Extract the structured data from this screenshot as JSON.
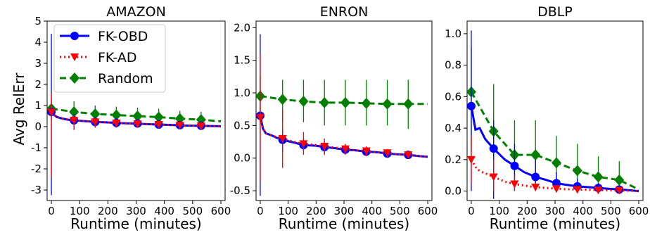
{
  "figure": {
    "ylabel": "Avg RelErr"
  },
  "legend": {
    "placement": "top-left of first panel",
    "entries": [
      {
        "name": "FK-OBD",
        "color": "#0000ff",
        "style": "solid",
        "marker": "circle"
      },
      {
        "name": "FK-AD",
        "color": "#ff0000",
        "style": "dotted",
        "marker": "triangle-down"
      },
      {
        "name": "Random",
        "color": "#008000",
        "style": "dashed",
        "marker": "diamond"
      }
    ]
  },
  "chart_data": [
    {
      "type": "line",
      "title": "AMAZON",
      "xlabel": "Runtime (minutes)",
      "ylabel": "Avg RelErr",
      "xlim": [
        -15,
        615
      ],
      "ylim": [
        -3.5,
        5.0
      ],
      "xticks": [
        0,
        100,
        200,
        300,
        400,
        500,
        600
      ],
      "yticks": [
        -3,
        -2,
        -1,
        0,
        1,
        2,
        3,
        4,
        5
      ],
      "series": [
        {
          "name": "FK-OBD",
          "color": "#0000ff",
          "line": {
            "x": [
              0,
              10,
              20,
              40,
              60,
              80,
              120,
              160,
              200,
              240,
              280,
              320,
              360,
              400,
              440,
              480,
              520,
              560,
              600
            ],
            "y": [
              0.7,
              0.55,
              0.45,
              0.38,
              0.33,
              0.3,
              0.26,
              0.22,
              0.2,
              0.17,
              0.15,
              0.13,
              0.11,
              0.09,
              0.07,
              0.05,
              0.04,
              0.03,
              0.02
            ]
          },
          "markers": {
            "x": [
              0,
              80,
              155,
              230,
              305,
              380,
              455,
              530
            ],
            "y": [
              0.7,
              0.3,
              0.22,
              0.18,
              0.15,
              0.1,
              0.07,
              0.04
            ]
          },
          "error_low": [
            -3.25,
            -0.15,
            -0.05,
            -0.05,
            -0.05,
            -0.1,
            -0.1,
            -0.15
          ],
          "error_high": [
            4.4,
            0.6,
            0.45,
            0.4,
            0.35,
            0.3,
            0.25,
            0.2
          ]
        },
        {
          "name": "FK-AD",
          "color": "#ff0000",
          "line": {
            "x": [
              0,
              10,
              20,
              40,
              60,
              80,
              120,
              160,
              200,
              240,
              280,
              320,
              360,
              400,
              440,
              480,
              520,
              560,
              600
            ],
            "y": [
              0.68,
              0.55,
              0.45,
              0.38,
              0.33,
              0.3,
              0.26,
              0.22,
              0.2,
              0.17,
              0.15,
              0.13,
              0.11,
              0.09,
              0.07,
              0.05,
              0.04,
              0.03,
              0.02
            ]
          },
          "markers": {
            "x": [
              0,
              80,
              155,
              230,
              305,
              380,
              455,
              530
            ],
            "y": [
              0.68,
              0.3,
              0.22,
              0.17,
              0.13,
              0.1,
              0.07,
              0.03
            ]
          },
          "error_low": [
            -2.4,
            -0.1,
            -0.05,
            -0.05,
            -0.05,
            -0.05,
            -0.05,
            -0.1
          ],
          "error_high": [
            1.6,
            0.55,
            0.4,
            0.35,
            0.3,
            0.25,
            0.2,
            0.15
          ]
        },
        {
          "name": "Random",
          "color": "#008000",
          "line": {
            "x": [
              0,
              80,
              155,
              230,
              305,
              380,
              455,
              530,
              600
            ],
            "y": [
              0.85,
              0.7,
              0.6,
              0.55,
              0.5,
              0.45,
              0.38,
              0.33,
              0.25
            ]
          },
          "markers": {
            "x": [
              0,
              80,
              155,
              230,
              305,
              380,
              455,
              530
            ],
            "y": [
              0.85,
              0.7,
              0.6,
              0.55,
              0.5,
              0.45,
              0.38,
              0.33
            ]
          },
          "error_low": [
            0.3,
            0.2,
            0.15,
            0.1,
            0.1,
            0.05,
            0.0,
            -0.05
          ],
          "error_high": [
            1.3,
            1.2,
            1.0,
            0.95,
            0.9,
            0.85,
            0.75,
            0.7
          ]
        }
      ]
    },
    {
      "type": "line",
      "title": "ENRON",
      "xlabel": "Runtime (minutes)",
      "ylabel": "",
      "xlim": [
        -15,
        615
      ],
      "ylim": [
        -0.65,
        2.1
      ],
      "xticks": [
        0,
        100,
        200,
        300,
        400,
        500,
        600
      ],
      "yticks": [
        -0.5,
        0.0,
        0.5,
        1.0,
        1.5,
        2.0
      ],
      "series": [
        {
          "name": "FK-OBD",
          "color": "#0000ff",
          "line": {
            "x": [
              0,
              10,
              20,
              40,
              60,
              80,
              120,
              155,
              200,
              230,
              270,
              305,
              340,
              380,
              420,
              455,
              490,
              530,
              570,
              600
            ],
            "y": [
              0.65,
              0.45,
              0.38,
              0.35,
              0.31,
              0.28,
              0.24,
              0.2,
              0.19,
              0.17,
              0.15,
              0.13,
              0.12,
              0.1,
              0.09,
              0.07,
              0.06,
              0.05,
              0.03,
              0.02
            ]
          },
          "markers": {
            "x": [
              0,
              80,
              155,
              230,
              305,
              380,
              455,
              530
            ],
            "y": [
              0.65,
              0.28,
              0.2,
              0.17,
              0.13,
              0.1,
              0.07,
              0.05
            ]
          },
          "error_low": [
            -0.58,
            0.1,
            0.1,
            0.08,
            0.06,
            0.05,
            0.03,
            0.02
          ],
          "error_high": [
            1.9,
            0.45,
            0.3,
            0.27,
            0.2,
            0.15,
            0.12,
            0.08
          ]
        },
        {
          "name": "FK-AD",
          "color": "#ff0000",
          "line": {
            "x": [
              0,
              10,
              20,
              40,
              60,
              80,
              120,
              155,
              200,
              230,
              270,
              305,
              340,
              380,
              420,
              455,
              490,
              530,
              570,
              600
            ],
            "y": [
              0.62,
              0.45,
              0.38,
              0.35,
              0.32,
              0.3,
              0.25,
              0.22,
              0.2,
              0.18,
              0.16,
              0.14,
              0.12,
              0.11,
              0.09,
              0.08,
              0.06,
              0.05,
              0.03,
              0.02
            ]
          },
          "markers": {
            "x": [
              0,
              80,
              155,
              230,
              305,
              380,
              455,
              530
            ],
            "y": [
              0.62,
              0.3,
              0.22,
              0.18,
              0.14,
              0.11,
              0.08,
              0.05
            ]
          },
          "error_low": [
            -0.35,
            -0.15,
            0.05,
            0.05,
            0.05,
            0.03,
            0.02,
            0.02
          ],
          "error_high": [
            1.6,
            0.75,
            0.4,
            0.3,
            0.22,
            0.18,
            0.14,
            0.1
          ]
        },
        {
          "name": "Random",
          "color": "#008000",
          "line": {
            "x": [
              0,
              80,
              155,
              230,
              305,
              380,
              455,
              530,
              600
            ],
            "y": [
              0.95,
              0.9,
              0.87,
              0.85,
              0.85,
              0.84,
              0.83,
              0.83,
              0.83
            ]
          },
          "markers": {
            "x": [
              0,
              80,
              155,
              230,
              305,
              380,
              455,
              530
            ],
            "y": [
              0.95,
              0.9,
              0.87,
              0.85,
              0.85,
              0.84,
              0.83,
              0.83
            ]
          },
          "error_low": [
            0.5,
            0.55,
            0.55,
            0.5,
            0.5,
            0.5,
            0.5,
            0.45
          ],
          "error_high": [
            1.25,
            1.2,
            1.2,
            1.2,
            1.2,
            1.2,
            1.2,
            1.2
          ]
        }
      ]
    },
    {
      "type": "line",
      "title": "DBLP",
      "xlabel": "Runtime (minutes)",
      "ylabel": "",
      "xlim": [
        -15,
        615
      ],
      "ylim": [
        -0.06,
        1.08
      ],
      "xticks": [
        0,
        100,
        200,
        300,
        400,
        500,
        600
      ],
      "yticks": [
        0.0,
        0.2,
        0.4,
        0.6,
        0.8,
        1.0
      ],
      "series": [
        {
          "name": "FK-OBD",
          "color": "#0000ff",
          "line": {
            "x": [
              0,
              15,
              30,
              50,
              80,
              120,
              155,
              190,
              230,
              270,
              305,
              340,
              380,
              420,
              455,
              490,
              530,
              570,
              600
            ],
            "y": [
              0.54,
              0.39,
              0.4,
              0.33,
              0.27,
              0.2,
              0.16,
              0.12,
              0.09,
              0.07,
              0.05,
              0.04,
              0.03,
              0.025,
              0.02,
              0.015,
              0.01,
              0.005,
              0.0
            ]
          },
          "markers": {
            "x": [
              0,
              80,
              155,
              230,
              305,
              380,
              455,
              530
            ],
            "y": [
              0.54,
              0.27,
              0.16,
              0.09,
              0.05,
              0.03,
              0.02,
              0.01
            ]
          },
          "error_low": [
            0.0,
            -0.05,
            0.0,
            0.0,
            0.0,
            0.0,
            0.0,
            0.0
          ],
          "error_high": [
            1.02,
            0.45,
            0.3,
            0.2,
            0.12,
            0.08,
            0.05,
            0.03
          ]
        },
        {
          "name": "FK-AD",
          "color": "#ff0000",
          "line": {
            "x": [
              0,
              20,
              40,
              80,
              120,
              155,
              190,
              230,
              270,
              305,
              340,
              380,
              420,
              455,
              490,
              530,
              570,
              600
            ],
            "y": [
              0.2,
              0.14,
              0.12,
              0.09,
              0.06,
              0.045,
              0.035,
              0.025,
              0.02,
              0.015,
              0.012,
              0.01,
              0.008,
              0.006,
              0.005,
              0.004,
              0.002,
              0.0
            ]
          },
          "markers": {
            "x": [
              0,
              80,
              155,
              230,
              305,
              380,
              455,
              530
            ],
            "y": [
              0.2,
              0.09,
              0.045,
              0.025,
              0.015,
              0.01,
              0.006,
              0.004
            ]
          },
          "error_low": [
            0.05,
            0.0,
            0.0,
            0.0,
            0.0,
            0.0,
            0.0,
            0.0
          ],
          "error_high": [
            0.35,
            0.2,
            0.1,
            0.05,
            0.03,
            0.02,
            0.02,
            0.015
          ]
        },
        {
          "name": "Random",
          "color": "#008000",
          "line": {
            "x": [
              0,
              80,
              155,
              230,
              305,
              380,
              455,
              530,
              600
            ],
            "y": [
              0.63,
              0.38,
              0.23,
              0.23,
              0.18,
              0.13,
              0.09,
              0.07,
              0.01
            ]
          },
          "markers": {
            "x": [
              0,
              80,
              155,
              230,
              305,
              380,
              455,
              530
            ],
            "y": [
              0.63,
              0.38,
              0.23,
              0.23,
              0.18,
              0.13,
              0.09,
              0.07
            ]
          },
          "error_low": [
            0.25,
            0.1,
            0.05,
            0.05,
            0.03,
            0.02,
            0.0,
            0.0
          ],
          "error_high": [
            0.91,
            0.68,
            0.45,
            0.45,
            0.35,
            0.3,
            0.22,
            0.19
          ]
        }
      ]
    }
  ]
}
